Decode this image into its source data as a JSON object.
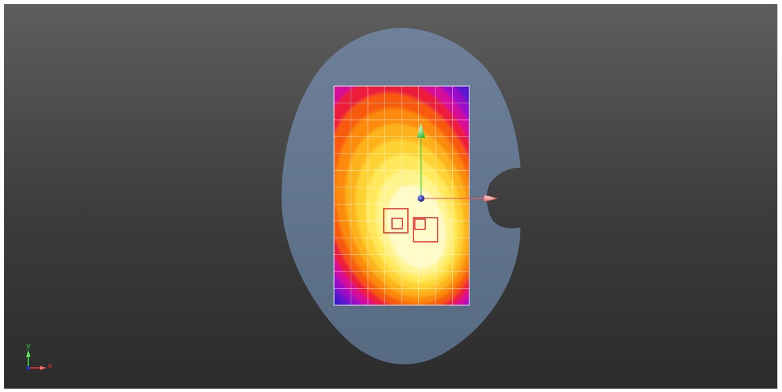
{
  "viewport": {
    "background_top": "#5e5e5e",
    "background_bottom": "#2c2c2c"
  },
  "model": {
    "outline_color": "#6b7d96",
    "heatmap_palette": [
      "#0b1a8a",
      "#2a1fc0",
      "#5a18d0",
      "#9a0fc8",
      "#d4079a",
      "#ee1a3a",
      "#f85a10",
      "#fb8a0c",
      "#fdb21a",
      "#fed232",
      "#ffe95a",
      "#fff38c",
      "#fffac8"
    ],
    "grid_columns": 8,
    "grid_rows": 13,
    "markers": [
      "square-marker",
      "square-marker",
      "square-marker",
      "square-marker"
    ]
  },
  "triad": {
    "x_label": "x",
    "y_label": "y",
    "x_color": "#e12c2c",
    "y_color": "#35c43a",
    "origin_color": "#2a33b0"
  },
  "local_axes": {
    "x_color": "#ff5a5a",
    "y_color": "#44dd44",
    "origin_color": "#2a2f9c"
  }
}
